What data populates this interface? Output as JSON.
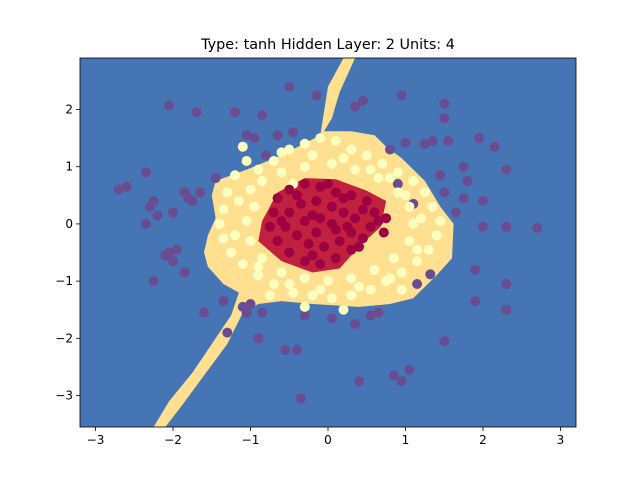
{
  "chart_data": {
    "type": "scatter",
    "title": "Type: tanh Hidden Layer: 2 Units: 4",
    "xlabel": "",
    "ylabel": "",
    "xlim": [
      -3.2,
      3.2
    ],
    "ylim": [
      -3.55,
      2.9
    ],
    "xticks": [
      -3,
      -2,
      -1,
      0,
      1,
      2,
      3
    ],
    "yticks": [
      -3,
      -2,
      -1,
      0,
      1,
      2
    ],
    "grid": false,
    "colors": {
      "background_region": "#4575b4",
      "middle_region": "#fee090",
      "center_region": "#c2203f",
      "outer_points": "#6a4c93",
      "middle_points": "#ffffbf",
      "center_points": "#9e0142"
    },
    "decision_regions": [
      {
        "class": "middle",
        "polygon": [
          [
            0.2,
            2.9
          ],
          [
            0.0,
            2.4
          ],
          [
            -0.1,
            1.55
          ],
          [
            -0.6,
            1.2
          ],
          [
            -1.05,
            0.95
          ],
          [
            -1.45,
            0.75
          ],
          [
            -1.5,
            0.5
          ],
          [
            -1.45,
            0.1
          ],
          [
            -1.55,
            -0.2
          ],
          [
            -1.6,
            -0.5
          ],
          [
            -1.55,
            -0.75
          ],
          [
            -1.35,
            -1.05
          ],
          [
            -1.15,
            -1.2
          ],
          [
            -1.25,
            -1.6
          ],
          [
            -1.5,
            -2.1
          ],
          [
            -1.75,
            -2.6
          ],
          [
            -2.05,
            -3.1
          ],
          [
            -2.25,
            -3.55
          ],
          [
            -2.1,
            -3.55
          ],
          [
            -1.9,
            -3.2
          ],
          [
            -1.6,
            -2.65
          ],
          [
            -1.3,
            -2.1
          ],
          [
            -1.1,
            -1.55
          ],
          [
            -0.9,
            -1.4
          ],
          [
            -0.6,
            -1.35
          ],
          [
            -0.2,
            -1.4
          ],
          [
            0.4,
            -1.45
          ],
          [
            0.8,
            -1.4
          ],
          [
            1.1,
            -1.3
          ],
          [
            1.4,
            -0.9
          ],
          [
            1.6,
            -0.6
          ],
          [
            1.62,
            0.0
          ],
          [
            1.45,
            0.3
          ],
          [
            1.25,
            0.75
          ],
          [
            0.95,
            1.15
          ],
          [
            0.75,
            1.35
          ],
          [
            0.6,
            1.55
          ],
          [
            0.3,
            1.62
          ],
          [
            -0.05,
            1.62
          ],
          [
            0.05,
            1.85
          ],
          [
            0.15,
            2.3
          ],
          [
            0.35,
            2.9
          ]
        ]
      },
      {
        "class": "center",
        "polygon": [
          [
            -0.85,
            0.05
          ],
          [
            -0.65,
            0.55
          ],
          [
            -0.3,
            0.8
          ],
          [
            0.1,
            0.78
          ],
          [
            0.5,
            0.58
          ],
          [
            0.75,
            0.4
          ],
          [
            0.68,
            -0.05
          ],
          [
            0.4,
            -0.4
          ],
          [
            0.15,
            -0.78
          ],
          [
            -0.2,
            -0.85
          ],
          [
            -0.6,
            -0.65
          ],
          [
            -0.9,
            -0.3
          ]
        ]
      }
    ],
    "series": [
      {
        "class": "outer",
        "points": [
          [
            -2.05,
            2.07
          ],
          [
            -1.7,
            1.95
          ],
          [
            -1.2,
            1.95
          ],
          [
            -0.85,
            1.9
          ],
          [
            -0.5,
            2.4
          ],
          [
            -0.15,
            2.25
          ],
          [
            0.35,
            2.05
          ],
          [
            0.95,
            2.25
          ],
          [
            1.5,
            2.1
          ],
          [
            1.5,
            1.85
          ],
          [
            1.55,
            1.45
          ],
          [
            1.95,
            1.5
          ],
          [
            2.15,
            1.35
          ],
          [
            1.75,
            1.0
          ],
          [
            1.45,
            0.85
          ],
          [
            1.8,
            0.75
          ],
          [
            1.5,
            0.55
          ],
          [
            1.75,
            0.45
          ],
          [
            2.0,
            0.4
          ],
          [
            1.65,
            0.2
          ],
          [
            2.3,
            0.95
          ],
          [
            2.0,
            -0.05
          ],
          [
            2.3,
            -0.05
          ],
          [
            2.7,
            -0.07
          ],
          [
            1.32,
            -0.88
          ],
          [
            1.15,
            -1.05
          ],
          [
            1.9,
            -0.8
          ],
          [
            2.3,
            -1.05
          ],
          [
            1.9,
            -1.35
          ],
          [
            2.3,
            -1.5
          ],
          [
            1.5,
            -2.05
          ],
          [
            1.05,
            -2.55
          ],
          [
            0.85,
            -2.65
          ],
          [
            0.95,
            -2.75
          ],
          [
            0.4,
            -2.75
          ],
          [
            0.35,
            -1.75
          ],
          [
            0.05,
            -1.65
          ],
          [
            0.55,
            -1.6
          ],
          [
            0.65,
            -1.55
          ],
          [
            -0.3,
            -1.6
          ],
          [
            -0.4,
            -2.2
          ],
          [
            -0.55,
            -2.2
          ],
          [
            -0.35,
            -3.05
          ],
          [
            -0.85,
            -1.55
          ],
          [
            -1.05,
            -1.55
          ],
          [
            -1.35,
            -1.35
          ],
          [
            -1.0,
            -1.4
          ],
          [
            -1.1,
            -1.45
          ],
          [
            -1.6,
            -1.55
          ],
          [
            -1.3,
            -1.9
          ],
          [
            -0.9,
            -2.0
          ],
          [
            -1.85,
            -0.85
          ],
          [
            -2.25,
            -1.0
          ],
          [
            -2.0,
            -0.65
          ],
          [
            -2.05,
            -0.5
          ],
          [
            -2.35,
            0.0
          ],
          [
            -2.2,
            0.15
          ],
          [
            -2.3,
            0.3
          ],
          [
            -2.25,
            0.4
          ],
          [
            -2.0,
            0.2
          ],
          [
            -1.75,
            0.4
          ],
          [
            -1.8,
            0.45
          ],
          [
            -1.85,
            0.55
          ],
          [
            -1.65,
            0.55
          ],
          [
            -1.45,
            0.8
          ],
          [
            -2.35,
            0.9
          ],
          [
            -2.6,
            0.65
          ],
          [
            -2.7,
            0.6
          ],
          [
            -2.1,
            -0.55
          ],
          [
            -1.95,
            -0.45
          ],
          [
            -0.95,
            1.5
          ],
          [
            -1.05,
            1.55
          ],
          [
            -0.65,
            1.55
          ],
          [
            -0.8,
            1.2
          ],
          [
            -0.45,
            1.6
          ],
          [
            0.45,
            2.15
          ],
          [
            0.8,
            1.3
          ],
          [
            1.25,
            1.4
          ],
          [
            1.0,
            1.42
          ],
          [
            1.35,
            1.45
          ],
          [
            0.9,
            0.7
          ],
          [
            1.1,
            0.35
          ]
        ]
      },
      {
        "class": "middle",
        "points": [
          [
            -1.2,
            0.85
          ],
          [
            -1.05,
            1.1
          ],
          [
            -0.9,
            0.95
          ],
          [
            -0.7,
            1.1
          ],
          [
            -0.5,
            1.3
          ],
          [
            -0.3,
            1.4
          ],
          [
            -0.1,
            1.5
          ],
          [
            0.1,
            1.45
          ],
          [
            0.3,
            1.3
          ],
          [
            0.5,
            1.2
          ],
          [
            0.7,
            1.05
          ],
          [
            0.9,
            0.9
          ],
          [
            1.1,
            0.75
          ],
          [
            1.25,
            0.55
          ],
          [
            1.35,
            0.3
          ],
          [
            1.45,
            0.05
          ],
          [
            1.4,
            -0.2
          ],
          [
            1.3,
            -0.45
          ],
          [
            1.15,
            -0.65
          ],
          [
            0.95,
            -0.85
          ],
          [
            0.75,
            -1.0
          ],
          [
            0.55,
            -1.15
          ],
          [
            0.3,
            -1.25
          ],
          [
            0.05,
            -1.3
          ],
          [
            -0.2,
            -1.25
          ],
          [
            -0.45,
            -1.2
          ],
          [
            -0.7,
            -1.05
          ],
          [
            -0.9,
            -0.9
          ],
          [
            -1.1,
            -0.7
          ],
          [
            -1.25,
            -0.5
          ],
          [
            -1.35,
            -0.25
          ],
          [
            -1.4,
            0.0
          ],
          [
            -1.35,
            0.25
          ],
          [
            -1.3,
            0.55
          ],
          [
            -1.0,
            0.6
          ],
          [
            -0.95,
            0.3
          ],
          [
            -1.05,
            0.05
          ],
          [
            -1.0,
            -0.3
          ],
          [
            -0.85,
            -0.6
          ],
          [
            -0.6,
            -0.85
          ],
          [
            -0.3,
            -0.95
          ],
          [
            0.0,
            -1.0
          ],
          [
            0.3,
            -0.95
          ],
          [
            0.6,
            -0.8
          ],
          [
            0.85,
            -0.6
          ],
          [
            1.05,
            -0.3
          ],
          [
            1.1,
            0.0
          ],
          [
            1.05,
            0.3
          ],
          [
            0.9,
            0.55
          ],
          [
            0.65,
            0.8
          ],
          [
            0.35,
            0.95
          ],
          [
            0.05,
            1.05
          ],
          [
            -0.3,
            1.0
          ],
          [
            -0.6,
            0.9
          ],
          [
            -0.85,
            0.75
          ],
          [
            -0.6,
            1.25
          ],
          [
            -0.2,
            1.2
          ],
          [
            0.2,
            1.15
          ],
          [
            0.55,
            0.95
          ],
          [
            0.8,
            0.8
          ],
          [
            1.0,
            0.5
          ],
          [
            1.2,
            0.1
          ],
          [
            1.15,
            -0.45
          ],
          [
            0.8,
            -0.95
          ],
          [
            0.4,
            -1.1
          ],
          [
            -0.1,
            -1.15
          ],
          [
            -0.5,
            -1.05
          ],
          [
            -0.9,
            -0.75
          ],
          [
            -1.2,
            -0.2
          ],
          [
            -1.15,
            0.4
          ],
          [
            -0.75,
            -1.25
          ],
          [
            -0.3,
            -1.45
          ],
          [
            0.2,
            -1.5
          ],
          [
            -1.1,
            1.35
          ],
          [
            -0.45,
            0.7
          ],
          [
            0.95,
            -1.15
          ]
        ]
      },
      {
        "class": "center",
        "points": [
          [
            -0.7,
            0.2
          ],
          [
            -0.65,
            0.45
          ],
          [
            -0.5,
            0.6
          ],
          [
            -0.3,
            0.7
          ],
          [
            -0.1,
            0.65
          ],
          [
            0.1,
            0.55
          ],
          [
            0.3,
            0.5
          ],
          [
            0.5,
            0.4
          ],
          [
            0.6,
            0.2
          ],
          [
            0.55,
            -0.05
          ],
          [
            0.45,
            -0.25
          ],
          [
            0.3,
            -0.45
          ],
          [
            0.1,
            -0.6
          ],
          [
            -0.1,
            -0.7
          ],
          [
            -0.3,
            -0.65
          ],
          [
            -0.5,
            -0.5
          ],
          [
            -0.65,
            -0.3
          ],
          [
            -0.75,
            -0.05
          ],
          [
            -0.5,
            0.2
          ],
          [
            -0.35,
            0.35
          ],
          [
            -0.15,
            0.4
          ],
          [
            0.05,
            0.3
          ],
          [
            0.2,
            0.2
          ],
          [
            0.35,
            0.1
          ],
          [
            0.3,
            -0.15
          ],
          [
            0.15,
            -0.3
          ],
          [
            -0.05,
            -0.4
          ],
          [
            -0.25,
            -0.35
          ],
          [
            -0.4,
            -0.2
          ],
          [
            -0.55,
            -0.05
          ],
          [
            -0.3,
            0.05
          ],
          [
            -0.1,
            0.1
          ],
          [
            0.05,
            0.0
          ],
          [
            -0.15,
            -0.15
          ],
          [
            0.1,
            -0.1
          ],
          [
            -0.4,
            0.5
          ],
          [
            0.2,
            0.45
          ],
          [
            0.45,
            0.25
          ],
          [
            0.4,
            -0.4
          ],
          [
            -0.2,
            -0.55
          ],
          [
            -0.6,
            0.05
          ],
          [
            0.65,
            0.05
          ],
          [
            0.72,
            -0.15
          ],
          [
            0.75,
            0.1
          ],
          [
            0.0,
            0.7
          ],
          [
            -0.2,
            0.15
          ],
          [
            0.25,
            -0.05
          ]
        ]
      }
    ]
  }
}
